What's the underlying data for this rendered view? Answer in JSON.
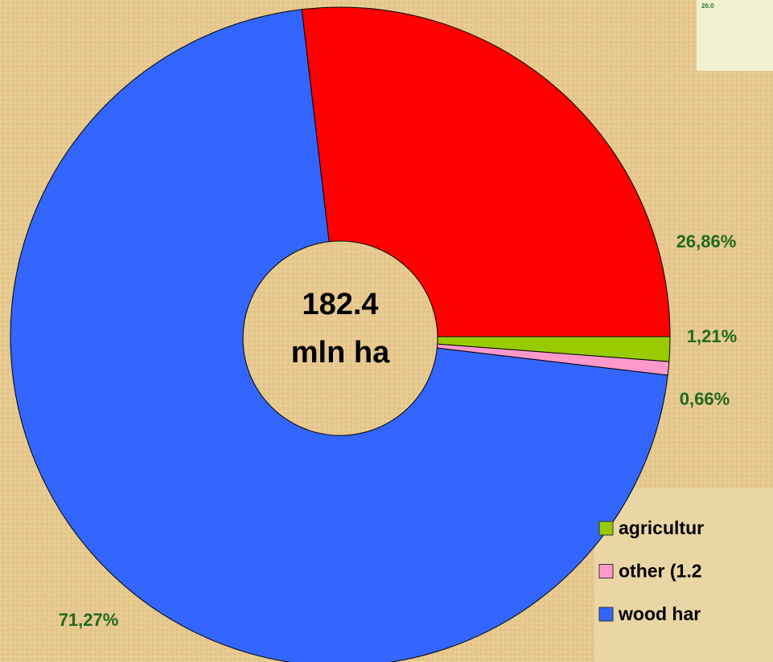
{
  "chart_data": {
    "type": "pie",
    "values": [
      26.86,
      1.21,
      0.66,
      71.27
    ],
    "value_labels": [
      "26,86%",
      "1,21%",
      "0,66%",
      "71,27%"
    ],
    "colors": [
      "#ff0000",
      "#99cc00",
      "#ff99cc",
      "#3366ff"
    ],
    "center_label": [
      "182.4",
      "mln ha"
    ],
    "legend": [
      {
        "label": "agricultur",
        "color": "#99cc00"
      },
      {
        "label": "other (1.2",
        "color": "#ff99cc"
      },
      {
        "label": "wood har",
        "color": "#3366ff"
      }
    ],
    "inset_label": "26.0"
  }
}
